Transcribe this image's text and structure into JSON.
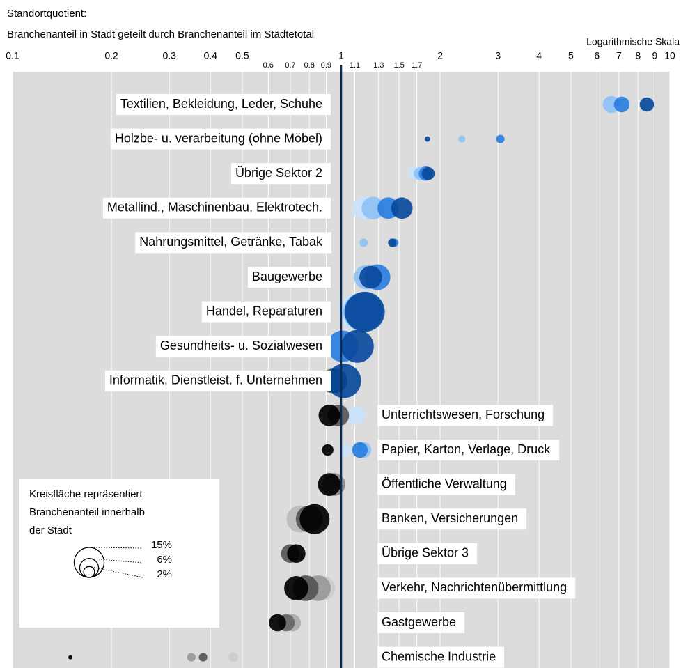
{
  "chart_data": {
    "type": "bubble",
    "title": "Standortquotient:",
    "subtitle": "Branchenanteil in Stadt geteilt durch Branchenanteil im Städtetotal",
    "scale_note": "Logarithmische Skala",
    "xscale": "log",
    "xlim": [
      0.1,
      10
    ],
    "xticks": [
      0.1,
      0.2,
      0.3,
      0.4,
      0.5,
      1,
      2,
      3,
      4,
      5,
      6,
      7,
      8,
      9,
      10
    ],
    "xticks_minor": [
      0.6,
      0.7,
      0.8,
      0.9,
      1.1,
      1.3,
      1.5,
      1.7
    ],
    "grid": true,
    "reference_line": 1,
    "reference_color": "#0b2a52",
    "rows": [
      {
        "label": "Textilien, Bekleidung, Leder, Schuhe",
        "x": [
          6.64,
          7.14,
          8.51
        ],
        "size": [
          4.9,
          4.1,
          3.4
        ],
        "colors": [
          "#8ec1f5",
          "#2a7ee0",
          "#0a4a9c"
        ]
      },
      {
        "label": "Holzbe- u. verarbeitung (ohne Möbel)",
        "x": [
          1.83,
          2.33,
          3.05
        ],
        "size": [
          0.5,
          0.85,
          1.2
        ],
        "colors": [
          "#0a4a9c",
          "#8ec1f5",
          "#2a7ee0"
        ]
      },
      {
        "label": "Übrige Sektor 2",
        "x": [
          1.67,
          1.74,
          1.81,
          1.84
        ],
        "size": [
          2.8,
          2.8,
          3.4,
          2.8
        ],
        "colors": [
          "#c8e1fa",
          "#8ec1f5",
          "#2a7ee0",
          "#0a4a9c"
        ]
      },
      {
        "label": "Metallind., Maschinenbau, Elektrotech.",
        "x": [
          1.17,
          1.25,
          1.39,
          1.53
        ],
        "size": [
          8.7,
          8.7,
          7.7,
          7.7
        ],
        "colors": [
          "#c8e1fa",
          "#8ec1f5",
          "#2a7ee0",
          "#0a4a9c"
        ]
      },
      {
        "label": "Nahrungsmittel, Getränke, Tabak",
        "x": [
          1.17,
          1.45,
          1.43
        ],
        "size": [
          1.2,
          1.2,
          1.2
        ],
        "colors": [
          "#8ec1f5",
          "#2a7ee0",
          "#0a4a9c"
        ]
      },
      {
        "label": "Baugewerbe",
        "x": [
          1.19,
          1.29,
          1.23
        ],
        "size": [
          9.8,
          11,
          8.7
        ],
        "colors": [
          "#8ec1f5",
          "#2a7ee0",
          "#0a4a9c"
        ]
      },
      {
        "label": "Handel, Reparaturen",
        "x": [
          1.11,
          1.16,
          1.17,
          1.18
        ],
        "size": [
          21,
          24.8,
          24.8,
          26.7
        ],
        "colors": [
          "#c8e1fa",
          "#8ec1f5",
          "#2a7ee0",
          "#0a4a9c"
        ]
      },
      {
        "label": "Gesundheits- u. Sozialwesen",
        "x": [
          1.01,
          1.12
        ],
        "size": [
          16.5,
          18
        ],
        "colors": [
          "#2a7ee0",
          "#0a4a9c"
        ]
      },
      {
        "label": "Informatik, Dienstleist. f. Unternehmen",
        "x": [
          0.94,
          0.96,
          1.02
        ],
        "size": [
          9.8,
          9.8,
          19.6
        ],
        "colors": [
          "#555555",
          "#000000",
          "#0a4a9c"
        ]
      },
      {
        "label": "Unterrichtswesen, Forschung",
        "x": [
          1.11,
          0.98,
          0.92
        ],
        "size": [
          5.7,
          7.7,
          7.7
        ],
        "colors": [
          "#c8e1fa",
          "#555555",
          "#000000"
        ]
      },
      {
        "label": "Papier, Karton, Verlage, Druck",
        "x": [
          0.91,
          1.03,
          1.17,
          1.14
        ],
        "size": [
          2.2,
          2.8,
          4.1,
          4.1
        ],
        "colors": [
          "#000000",
          "#c8e1fa",
          "#8ec1f5",
          "#2a7ee0"
        ]
      },
      {
        "label": "Öffentliche Verwaltung",
        "x": [
          0.95,
          0.92
        ],
        "size": [
          8.7,
          8.7
        ],
        "colors": [
          "#888888",
          "#000000"
        ]
      },
      {
        "label": "Banken, Versicherungen",
        "x": [
          0.75,
          0.8,
          0.83
        ],
        "size": [
          12.3,
          12.3,
          15
        ],
        "colors": [
          "#bbbbbb",
          "#555555",
          "#000000"
        ]
      },
      {
        "label": "Übrige Sektor 3",
        "x": [
          0.7,
          0.73
        ],
        "size": [
          5.7,
          5.7
        ],
        "colors": [
          "#555555",
          "#000000"
        ]
      },
      {
        "label": "Verkehr, Nachrichtenübermittlung",
        "x": [
          0.88,
          0.85,
          0.78,
          0.73
        ],
        "size": [
          9.8,
          11,
          11,
          9.8
        ],
        "colors": [
          "#cccccc",
          "#999999",
          "#555555",
          "#000000"
        ]
      },
      {
        "label": "Gastgewerbe",
        "x": [
          0.71,
          0.68,
          0.64
        ],
        "size": [
          4.9,
          4.9,
          4.9
        ],
        "colors": [
          "#aaaaaa",
          "#666666",
          "#000000"
        ]
      },
      {
        "label": "Chemische Industrie",
        "x": [
          0.15,
          0.35,
          0.38,
          0.47
        ],
        "size": [
          0.3,
          1.2,
          1.2,
          1.6
        ],
        "colors": [
          "#000000",
          "#999999",
          "#555555",
          "#cccccc"
        ]
      }
    ],
    "size_legend": {
      "lines": [
        "Kreisfläche repräsentiert",
        "Branchenanteil innerhalb",
        "der Stadt"
      ],
      "sizes": [
        15,
        6,
        2
      ],
      "labels": [
        "15%",
        "6%",
        "2%"
      ]
    }
  }
}
